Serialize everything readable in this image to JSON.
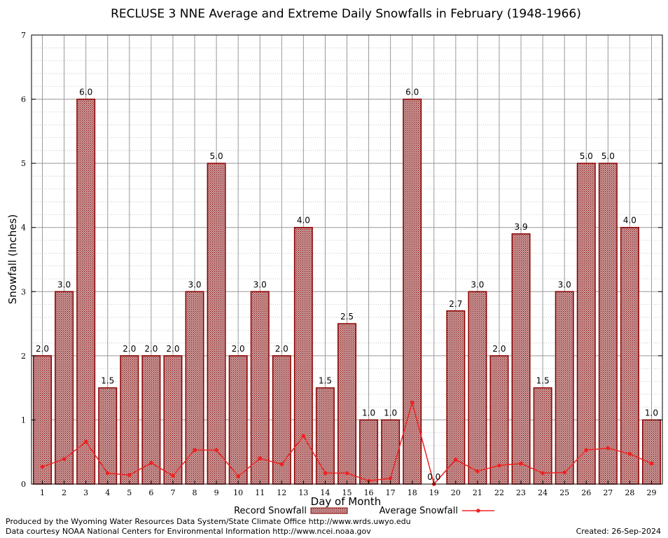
{
  "chart_data": {
    "type": "bar",
    "title": "RECLUSE 3 NNE Average and Extreme Daily Snowfalls in February (1948-1966)",
    "xlabel": "Day of Month",
    "ylabel": "Snowfall (Inches)",
    "ylim": [
      0,
      7
    ],
    "yticks": [
      "0",
      "1",
      "2",
      "3",
      "4",
      "5",
      "6",
      "7"
    ],
    "categories": [
      "1",
      "2",
      "3",
      "4",
      "5",
      "6",
      "7",
      "8",
      "9",
      "10",
      "11",
      "12",
      "13",
      "14",
      "15",
      "16",
      "17",
      "18",
      "19",
      "20",
      "21",
      "22",
      "23",
      "24",
      "25",
      "26",
      "27",
      "28",
      "29"
    ],
    "grid": true,
    "legend_position": "bottom",
    "series": [
      {
        "name": "Record Snowfall",
        "kind": "bar",
        "color": "#8b0000",
        "values": [
          2.0,
          3.0,
          6.0,
          1.5,
          2.0,
          2.0,
          2.0,
          3.0,
          5.0,
          2.0,
          3.0,
          2.0,
          4.0,
          1.5,
          2.5,
          1.0,
          1.0,
          6.0,
          0.0,
          2.7,
          3.0,
          2.0,
          3.9,
          1.5,
          3.0,
          5.0,
          5.0,
          4.0,
          1.0
        ],
        "labels": [
          "2.0",
          "3.0",
          "6.0",
          "1.5",
          "2.0",
          "2.0",
          "2.0",
          "3.0",
          "5.0",
          "2.0",
          "3.0",
          "2.0",
          "4.0",
          "1.5",
          "2.5",
          "1.0",
          "1.0",
          "6.0",
          "0.0",
          "2.7",
          "3.0",
          "2.0",
          "3.9",
          "1.5",
          "3.0",
          "5.0",
          "5.0",
          "4.0",
          "1.0"
        ]
      },
      {
        "name": "Average Snowfall",
        "kind": "line",
        "color": "#ee2222",
        "values": [
          0.27,
          0.39,
          0.66,
          0.17,
          0.14,
          0.33,
          0.13,
          0.53,
          0.53,
          0.12,
          0.4,
          0.31,
          0.75,
          0.17,
          0.17,
          0.05,
          0.09,
          1.27,
          0.0,
          0.38,
          0.2,
          0.29,
          0.32,
          0.17,
          0.18,
          0.53,
          0.56,
          0.47,
          0.32
        ]
      }
    ]
  },
  "footer": {
    "credit1": "Produced by the Wyoming Water Resources Data System/State Climate Office http://www.wrds.uwyo.edu",
    "credit2": "Data courtesy NOAA National Centers for Environmental Information http://www.ncei.noaa.gov",
    "created": "Created:  26-Sep-2024"
  }
}
